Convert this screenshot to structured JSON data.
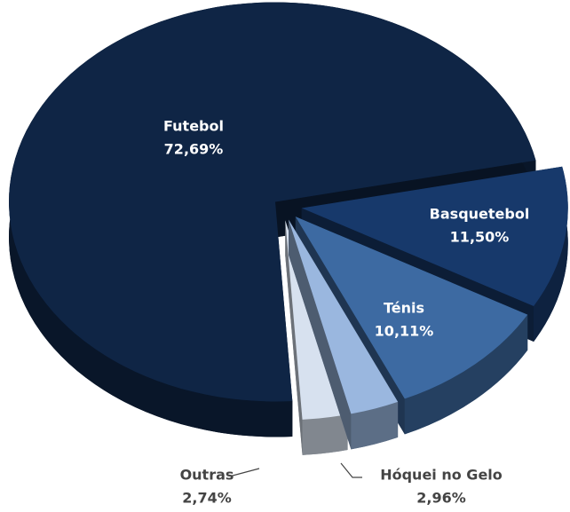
{
  "chart_data": {
    "type": "pie",
    "categories": [
      "Basquetebol",
      "Ténis",
      "Hóquei no Gelo",
      "Outras",
      "Futebol"
    ],
    "values": [
      11.5,
      10.11,
      2.96,
      2.74,
      72.69
    ],
    "value_labels": [
      "11,50%",
      "10,11%",
      "2,96%",
      "2,74%",
      "72,69%"
    ],
    "colors": [
      "#17396b",
      "#3d6aa2",
      "#9ab7df",
      "#d7e1ef",
      "#0f2545"
    ]
  }
}
